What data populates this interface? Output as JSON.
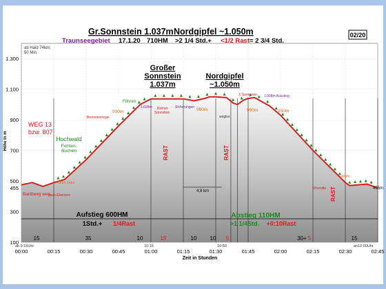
{
  "page_badge": "02/20",
  "title": {
    "main_a": "Gr.Sonnstein 1.037m",
    "main_b": "Nordgipfel ~1.050m",
    "region": "Traunseegebiet",
    "date": "17.1.20",
    "hm": "710HM",
    "time_a": ">2 1/4 Std.+",
    "time_b": "<1/2 Rast",
    "time_c": "= 2 3/4 Std."
  },
  "corner_note": [
    "ab Haid 74km;",
    "50 Min."
  ],
  "peak_labels": {
    "gross": [
      "Großer",
      "Sonnstein",
      "1.037m"
    ],
    "nord": [
      "Nordgipfel",
      "~1.050m"
    ]
  },
  "route_label": [
    "WEG 13",
    "bzw. 807"
  ],
  "forest_label": [
    "Hochwald",
    "Fichten,",
    "Buchen"
  ],
  "annotations": {
    "foehren": "Föhren",
    "m1028": "1.028m",
    "brennten": "Brenntenriegel",
    "klein": [
      "Kleiner",
      "Sonnstein"
    ],
    "sicherung": "Sicherungen",
    "xsonn": "X Sonnstein",
    "m1008": "1.008m Ausstieg",
    "weglos": "weglos",
    "dist": "4,8 km",
    "ortsmitte": "Ortsmitte",
    "bart": "Bartlberg weg",
    "nach": "nach Ebensee",
    "m490_left": "490m links",
    "m490_right": "490m",
    "m455": "455m",
    "m930_left": "930m",
    "m990_a": "990m",
    "m990_b": "990m",
    "m930_right": "930m"
  },
  "rast_labels": [
    "RAST",
    "RAST",
    "RAST"
  ],
  "aufstieg": {
    "line1": "Aufstieg 600HM",
    "line2a": "1Std.+",
    "line2b": "1/4Rast"
  },
  "abstieg": {
    "line1": "Abstieg 110HM",
    "line2a": ">1 1/4Std.",
    "line2b": "+0:10Rast"
  },
  "segment_numbers": [
    {
      "text": "15",
      "color": "#000000"
    },
    {
      "text": "35",
      "color": "#000000"
    },
    {
      "text": "10",
      "color": "#000000"
    },
    {
      "text": "15",
      "color": "#e8141b"
    },
    {
      "text": "10",
      "color": "#000000"
    },
    {
      "text": "10",
      "color": "#000000"
    },
    {
      "text": "5",
      "color": "#e8141b"
    },
    {
      "text": "30+",
      "color": "#000000"
    },
    {
      "text": "5",
      "color": "#e8141b"
    },
    {
      "text": "15",
      "color": "#000000"
    }
  ],
  "time_marks": {
    "start": "ab 9:15Uhr",
    "t1015": "10:15",
    "t1050": "10:50",
    "end": "an12:00Uhr"
  },
  "colors": {
    "profile": "#d42020",
    "fill_top": "#f4f4f4",
    "fill_bottom": "#8a8a8a",
    "accent_green": "#1a8a1a",
    "accent_purple": "#7a1fa0",
    "accent_orange": "#e06a10"
  },
  "chart_data": {
    "type": "area",
    "title": "Gr.Sonnstein 1.037m Nordgipfel ~1.050m",
    "xlabel": "Zeit in Stunden",
    "ylabel": "Höhe in m",
    "x_ticks": [
      "00:00",
      "00:15",
      "00:30",
      "00:45",
      "01:00",
      "01:15",
      "01:30",
      "01:45",
      "02:00",
      "02:15",
      "02:30",
      "02:45"
    ],
    "y_ticks": [
      "100",
      "300",
      "455",
      "500",
      "700",
      "900",
      "1.100",
      "1.300"
    ],
    "xlim_min": [
      0,
      165
    ],
    "ylim": [
      100,
      1400
    ],
    "grid": true,
    "x_minutes": [
      0,
      5,
      10,
      15,
      20,
      30,
      45,
      55,
      60,
      65,
      75,
      80,
      85,
      87,
      90,
      95,
      98,
      100,
      103,
      105,
      108,
      115,
      120,
      135,
      150,
      152,
      160,
      165
    ],
    "elevation": [
      475,
      490,
      465,
      490,
      510,
      640,
      860,
      1000,
      1037,
      1037,
      1037,
      1025,
      1040,
      1050,
      1050,
      1045,
      1010,
      1000,
      1030,
      1040,
      1045,
      990,
      930,
      700,
      490,
      470,
      480,
      455
    ]
  }
}
